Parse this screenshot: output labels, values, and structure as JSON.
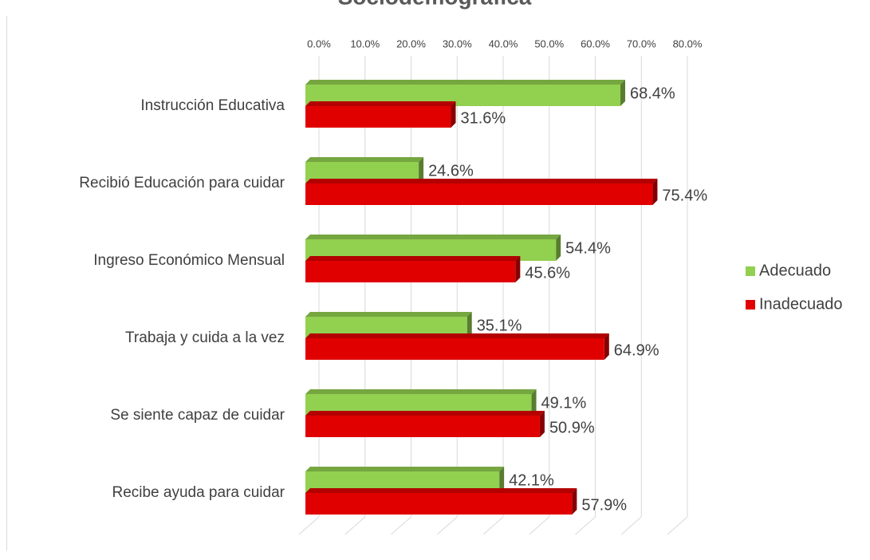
{
  "chart_data": {
    "type": "bar3d_horizontal",
    "title": "Sociodemográfica",
    "categories": [
      "Instrucción Educativa",
      "Recibió Educación para cuidar",
      "Ingreso Económico Mensual",
      "Trabaja y cuida a la vez",
      "Se siente capaz de cuidar",
      "Recibe ayuda para cuidar"
    ],
    "series": [
      {
        "name": "Adecuado",
        "color": "#92d050",
        "values": [
          68.4,
          24.6,
          54.4,
          35.1,
          49.1,
          42.1
        ],
        "value_labels": [
          "68.4%",
          "24.6%",
          "54.4%",
          "35.1%",
          "49.1%",
          "42.1%"
        ]
      },
      {
        "name": "Inadecuado",
        "color": "#e00000",
        "values": [
          31.6,
          75.4,
          45.6,
          64.9,
          50.9,
          57.9
        ],
        "value_labels": [
          "31.6%",
          "75.4%",
          "45.6%",
          "64.9%",
          "50.9%",
          "57.9%"
        ]
      }
    ],
    "xlim": [
      0,
      80
    ],
    "xticks": [
      {
        "value": 0,
        "label": "0.0%"
      },
      {
        "value": 10,
        "label": "10.0%"
      },
      {
        "value": 20,
        "label": "20.0%"
      },
      {
        "value": 30,
        "label": "30.0%"
      },
      {
        "value": 40,
        "label": "40.0%"
      },
      {
        "value": 50,
        "label": "50.0%"
      },
      {
        "value": 60,
        "label": "60.0%"
      },
      {
        "value": 70,
        "label": "70.0%"
      },
      {
        "value": 80,
        "label": "80.0%"
      }
    ],
    "legend": "right",
    "grid": true
  }
}
